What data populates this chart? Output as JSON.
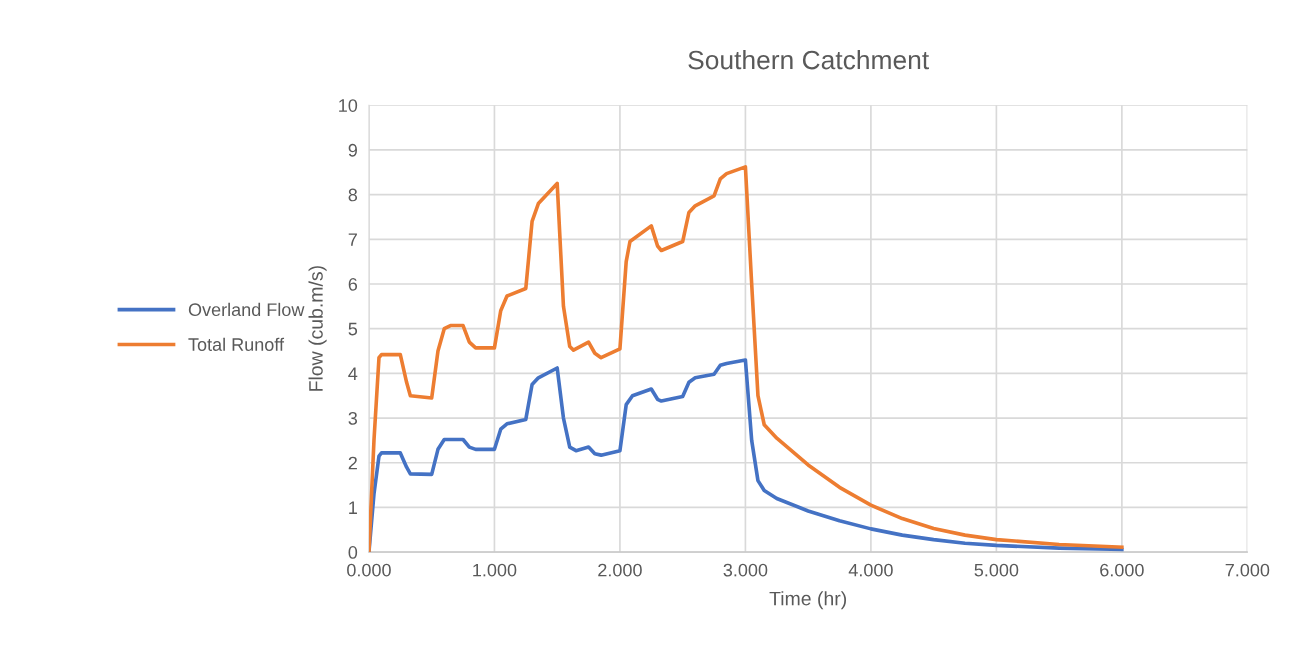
{
  "chart_data": {
    "type": "line",
    "title": "Southern Catchment",
    "xlabel": "Time (hr)",
    "ylabel": "Flow (cub.m/s)",
    "xlim": [
      0,
      7
    ],
    "xticks": [
      {
        "value": 0,
        "label": "0.000"
      },
      {
        "value": 1,
        "label": "1.000"
      },
      {
        "value": 2,
        "label": "2.000"
      },
      {
        "value": 3,
        "label": "3.000"
      },
      {
        "value": 4,
        "label": "4.000"
      },
      {
        "value": 5,
        "label": "5.000"
      },
      {
        "value": 6,
        "label": "6.000"
      },
      {
        "value": 7,
        "label": "7.000"
      }
    ],
    "ylim": [
      0,
      10
    ],
    "yticks": [
      0,
      1,
      2,
      3,
      4,
      5,
      6,
      7,
      8,
      9,
      10
    ],
    "grid": true,
    "legend": "left",
    "marker": "none",
    "line_style": "solid",
    "series": [
      {
        "name": "Overland Flow",
        "color": "#4472c4",
        "x": [
          0,
          0.04,
          0.08,
          0.1,
          0.25,
          0.3,
          0.33,
          0.5,
          0.55,
          0.6,
          0.75,
          0.8,
          0.85,
          1.0,
          1.05,
          1.1,
          1.25,
          1.3,
          1.35,
          1.5,
          1.55,
          1.6,
          1.65,
          1.75,
          1.8,
          1.85,
          2.0,
          2.05,
          2.1,
          2.25,
          2.3,
          2.33,
          2.5,
          2.55,
          2.6,
          2.75,
          2.8,
          2.85,
          3.0,
          3.05,
          3.1,
          3.15,
          3.25,
          3.5,
          3.75,
          4.0,
          4.25,
          4.5,
          4.75,
          5.0,
          5.5,
          6.0
        ],
        "values": [
          0,
          1.3,
          2.15,
          2.22,
          2.22,
          1.9,
          1.75,
          1.74,
          2.3,
          2.52,
          2.52,
          2.35,
          2.3,
          2.3,
          2.75,
          2.87,
          2.97,
          3.75,
          3.9,
          4.12,
          3.0,
          2.35,
          2.27,
          2.35,
          2.2,
          2.17,
          2.27,
          3.3,
          3.5,
          3.65,
          3.42,
          3.38,
          3.48,
          3.8,
          3.9,
          3.98,
          4.18,
          4.22,
          4.3,
          2.5,
          1.6,
          1.38,
          1.2,
          0.92,
          0.7,
          0.52,
          0.38,
          0.28,
          0.2,
          0.15,
          0.09,
          0.06
        ]
      },
      {
        "name": "Total Runoff",
        "color": "#ed7d31",
        "x": [
          0,
          0.04,
          0.08,
          0.1,
          0.25,
          0.3,
          0.33,
          0.5,
          0.55,
          0.6,
          0.65,
          0.75,
          0.8,
          0.85,
          1.0,
          1.05,
          1.1,
          1.25,
          1.3,
          1.35,
          1.5,
          1.55,
          1.6,
          1.63,
          1.75,
          1.8,
          1.85,
          2.0,
          2.05,
          2.08,
          2.25,
          2.3,
          2.33,
          2.5,
          2.55,
          2.6,
          2.75,
          2.8,
          2.85,
          3.0,
          3.05,
          3.1,
          3.15,
          3.25,
          3.5,
          3.75,
          4.0,
          4.25,
          4.5,
          4.75,
          5.0,
          5.5,
          6.0
        ],
        "values": [
          0,
          2.5,
          4.35,
          4.42,
          4.42,
          3.8,
          3.5,
          3.45,
          4.5,
          5.0,
          5.07,
          5.07,
          4.7,
          4.57,
          4.57,
          5.4,
          5.73,
          5.9,
          7.4,
          7.8,
          8.25,
          5.5,
          4.6,
          4.52,
          4.7,
          4.45,
          4.35,
          4.55,
          6.5,
          6.95,
          7.3,
          6.85,
          6.75,
          6.95,
          7.6,
          7.75,
          7.97,
          8.35,
          8.47,
          8.62,
          6.0,
          3.5,
          2.85,
          2.55,
          1.95,
          1.45,
          1.05,
          0.75,
          0.53,
          0.38,
          0.28,
          0.17,
          0.11
        ]
      }
    ]
  }
}
